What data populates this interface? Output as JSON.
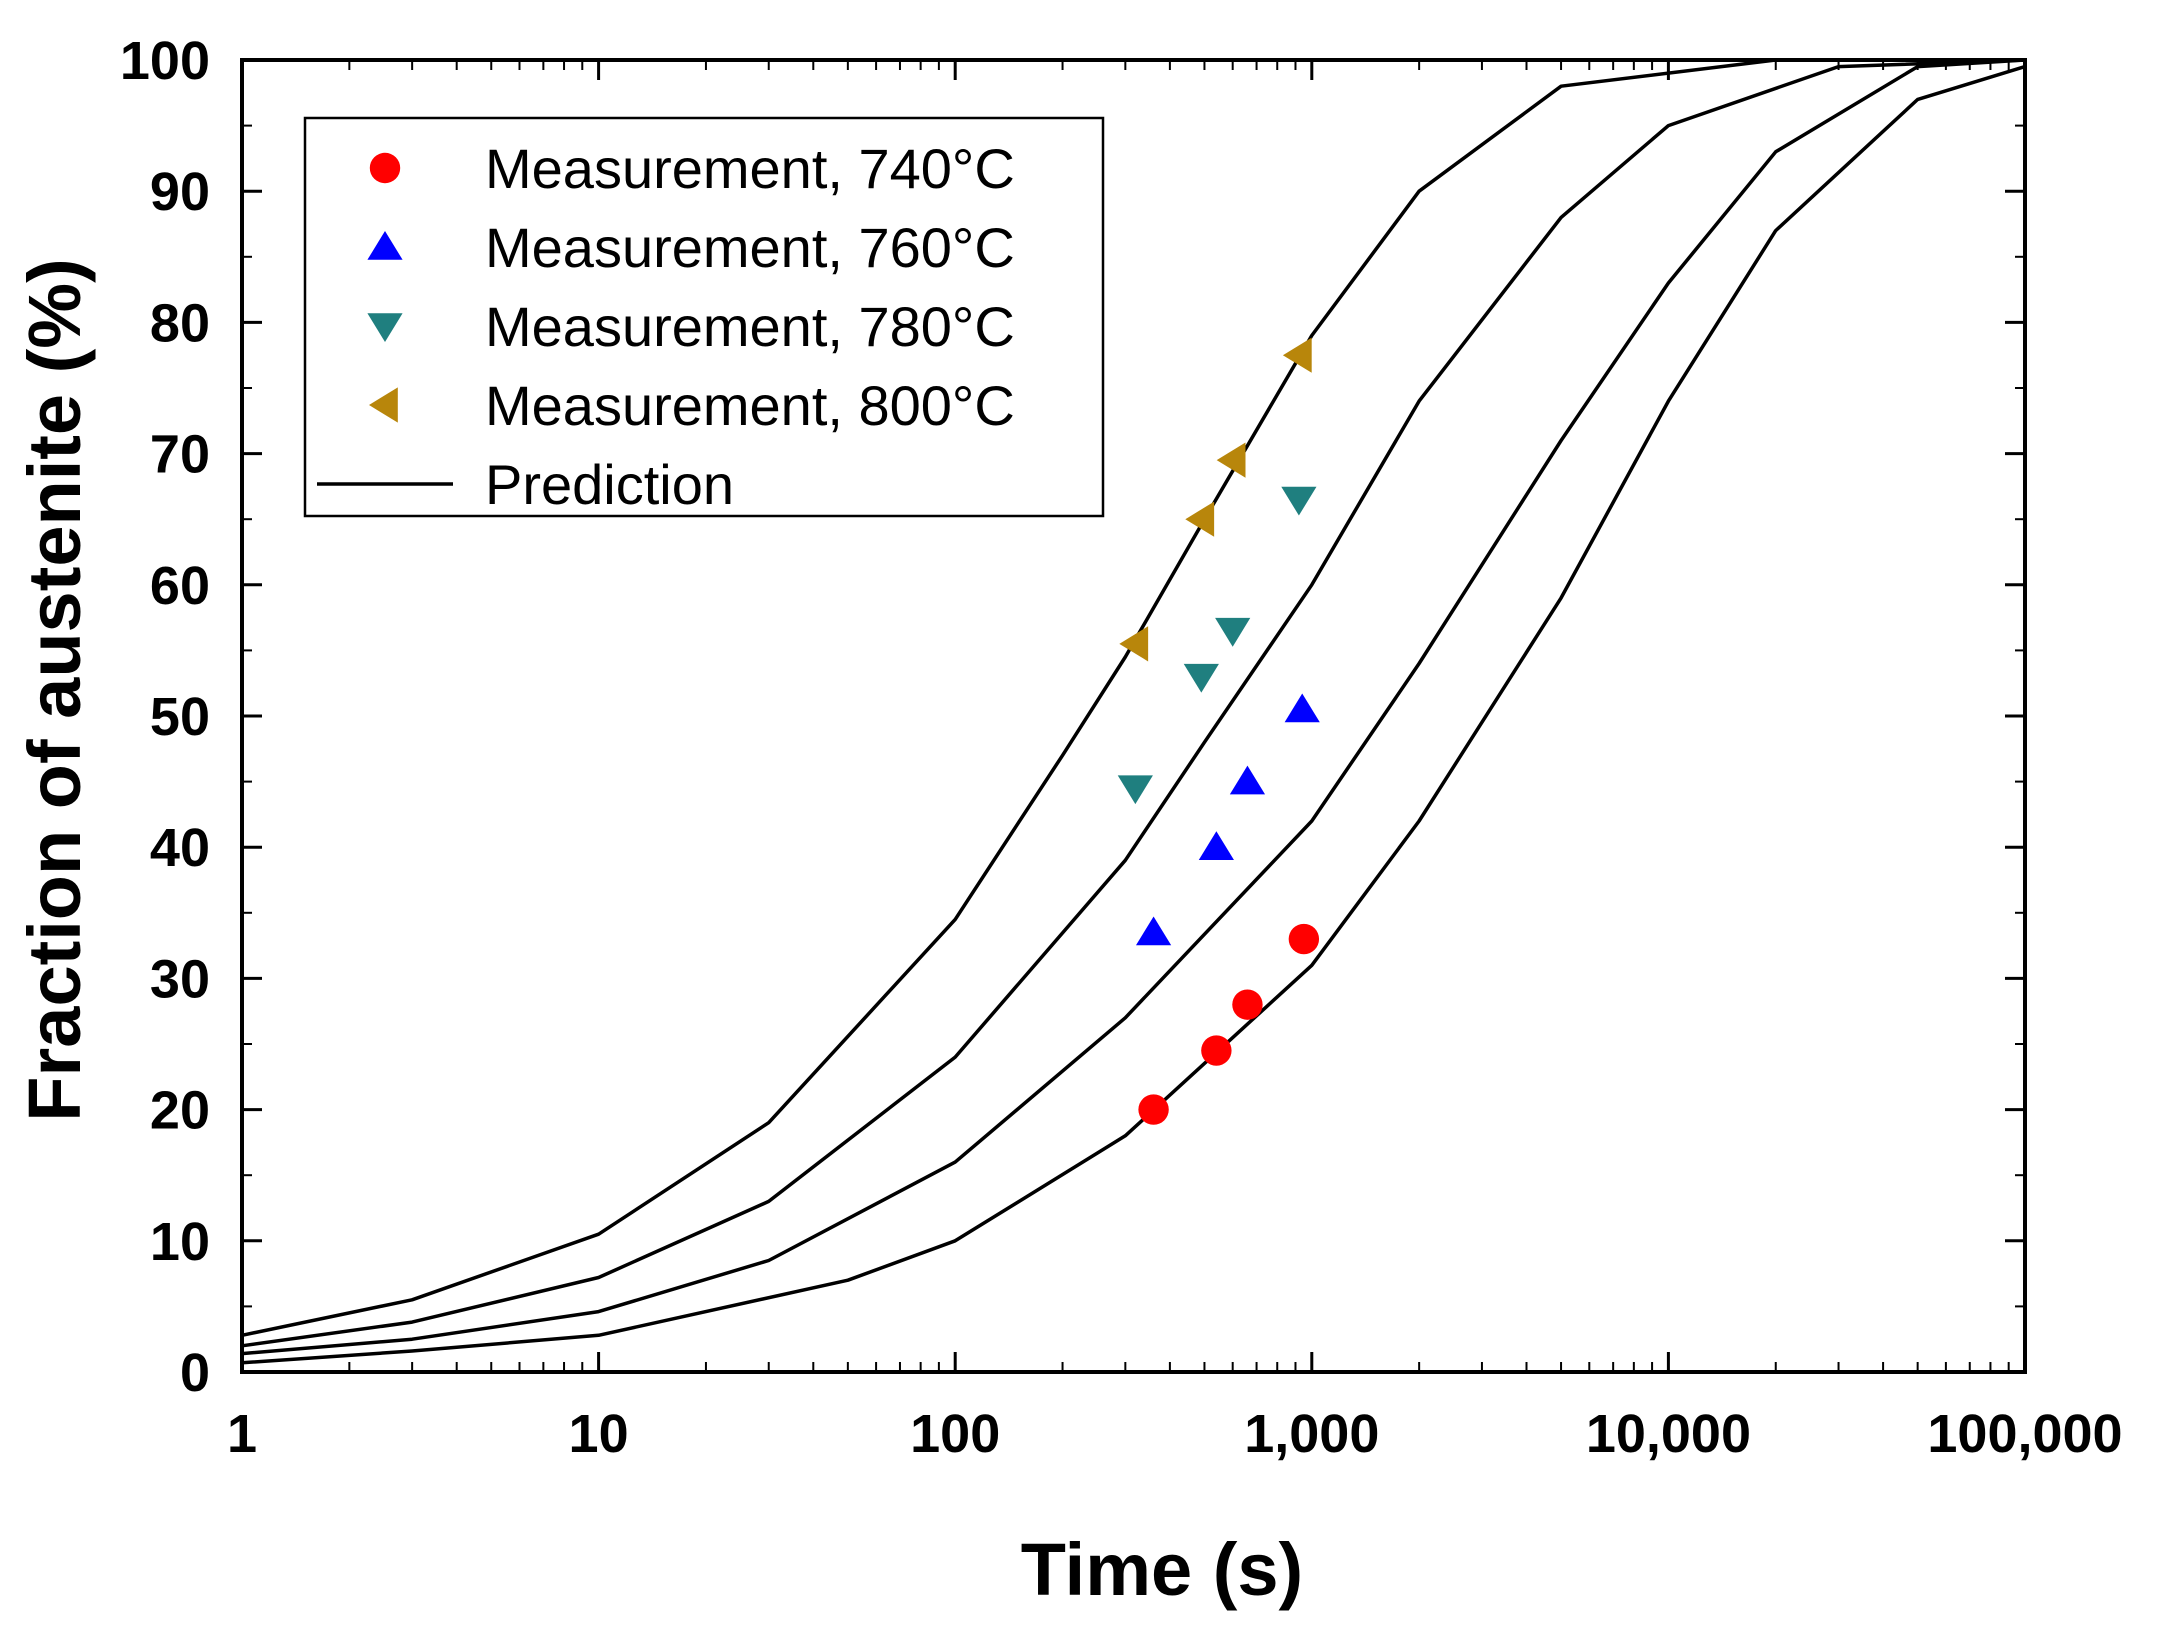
{
  "chart_data": {
    "type": "scatter",
    "title": "",
    "xlabel": "Time (s)",
    "ylabel": "Fraction of austenite (%)",
    "x_scale": "log",
    "xlim": [
      1,
      100000
    ],
    "ylim": [
      0,
      100
    ],
    "x_ticks": [
      {
        "value": 1,
        "label": "1"
      },
      {
        "value": 10,
        "label": "10"
      },
      {
        "value": 100,
        "label": "100"
      },
      {
        "value": 1000,
        "label": "1,000"
      },
      {
        "value": 10000,
        "label": "10,000"
      },
      {
        "value": 100000,
        "label": "100,000"
      }
    ],
    "y_ticks": [
      {
        "value": 0,
        "label": "0"
      },
      {
        "value": 10,
        "label": "10"
      },
      {
        "value": 20,
        "label": "20"
      },
      {
        "value": 30,
        "label": "30"
      },
      {
        "value": 40,
        "label": "40"
      },
      {
        "value": 50,
        "label": "50"
      },
      {
        "value": 60,
        "label": "60"
      },
      {
        "value": 70,
        "label": "70"
      },
      {
        "value": 80,
        "label": "80"
      },
      {
        "value": 90,
        "label": "90"
      },
      {
        "value": 100,
        "label": "100"
      }
    ],
    "grid": false,
    "legend_position": "top-left",
    "series": [
      {
        "name": "Measurement, 740°C",
        "kind": "scatter",
        "marker": "circle",
        "color": "#ff0000",
        "points": [
          [
            360,
            20
          ],
          [
            540,
            24.5
          ],
          [
            660,
            28
          ],
          [
            950,
            33
          ]
        ]
      },
      {
        "name": "Measurement, 760°C",
        "kind": "scatter",
        "marker": "triangle-up",
        "color": "#0000ff",
        "points": [
          [
            360,
            33.5
          ],
          [
            540,
            40
          ],
          [
            660,
            45
          ],
          [
            940,
            50.5
          ]
        ]
      },
      {
        "name": "Measurement, 780°C",
        "kind": "scatter",
        "marker": "triangle-down",
        "color": "#1f7f7f",
        "points": [
          [
            320,
            44.5
          ],
          [
            490,
            53
          ],
          [
            600,
            56.5
          ],
          [
            920,
            66.5
          ]
        ]
      },
      {
        "name": "Measurement, 800°C",
        "kind": "scatter",
        "marker": "triangle-left",
        "color": "#b8860b",
        "points": [
          [
            320,
            55.5
          ],
          [
            490,
            65
          ],
          [
            600,
            69.5
          ],
          [
            920,
            77.5
          ]
        ]
      },
      {
        "name": "Prediction",
        "kind": "line",
        "color": "#000000",
        "curves": [
          {
            "points": [
              [
                1,
                2.8
              ],
              [
                3,
                5.5
              ],
              [
                10,
                10.5
              ],
              [
                30,
                19
              ],
              [
                100,
                34.5
              ],
              [
                200,
                47
              ],
              [
                300,
                54.5
              ],
              [
                500,
                65
              ],
              [
                1000,
                79
              ],
              [
                2000,
                90
              ],
              [
                5000,
                98
              ],
              [
                20000,
                100
              ],
              [
                100000,
                100
              ]
            ]
          },
          {
            "points": [
              [
                1,
                2.0
              ],
              [
                3,
                3.8
              ],
              [
                10,
                7.2
              ],
              [
                30,
                13
              ],
              [
                100,
                24
              ],
              [
                300,
                39
              ],
              [
                500,
                48
              ],
              [
                1000,
                60
              ],
              [
                2000,
                74
              ],
              [
                5000,
                88
              ],
              [
                10000,
                95
              ],
              [
                30000,
                99.5
              ],
              [
                100000,
                100
              ]
            ]
          },
          {
            "points": [
              [
                1,
                1.4
              ],
              [
                3,
                2.5
              ],
              [
                10,
                4.6
              ],
              [
                30,
                8.5
              ],
              [
                100,
                16
              ],
              [
                300,
                27
              ],
              [
                1000,
                42
              ],
              [
                2000,
                54
              ],
              [
                5000,
                71
              ],
              [
                10000,
                83
              ],
              [
                20000,
                93
              ],
              [
                50000,
                99.5
              ],
              [
                100000,
                100
              ]
            ]
          },
          {
            "points": [
              [
                1,
                0.7
              ],
              [
                3,
                1.6
              ],
              [
                10,
                2.8
              ],
              [
                50,
                7
              ],
              [
                100,
                10
              ],
              [
                300,
                18
              ],
              [
                1000,
                31
              ],
              [
                2000,
                42
              ],
              [
                5000,
                59
              ],
              [
                10000,
                74
              ],
              [
                20000,
                87
              ],
              [
                50000,
                97
              ],
              [
                100000,
                99.5
              ]
            ]
          }
        ]
      }
    ]
  }
}
